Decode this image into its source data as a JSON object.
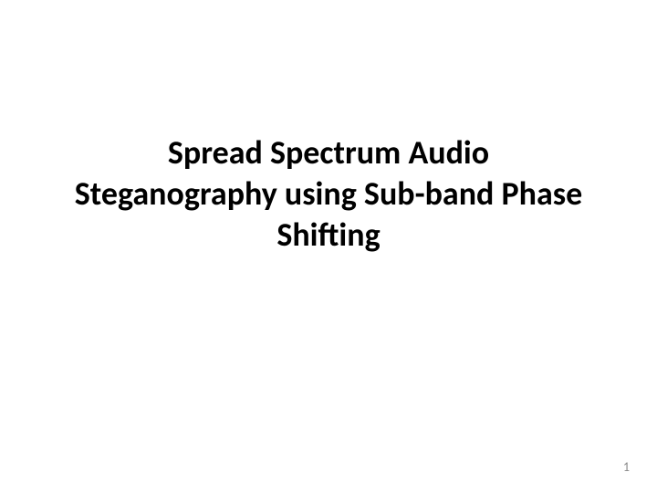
{
  "slide": {
    "title": "Spread Spectrum Audio Steganography using Sub-band Phase Shifting",
    "page_number": "1",
    "background_color": "#ffffff",
    "title_color": "#000000",
    "title_fontsize": 36,
    "title_fontweight": "bold",
    "page_number_color": "#888888",
    "page_number_fontsize": 14
  }
}
